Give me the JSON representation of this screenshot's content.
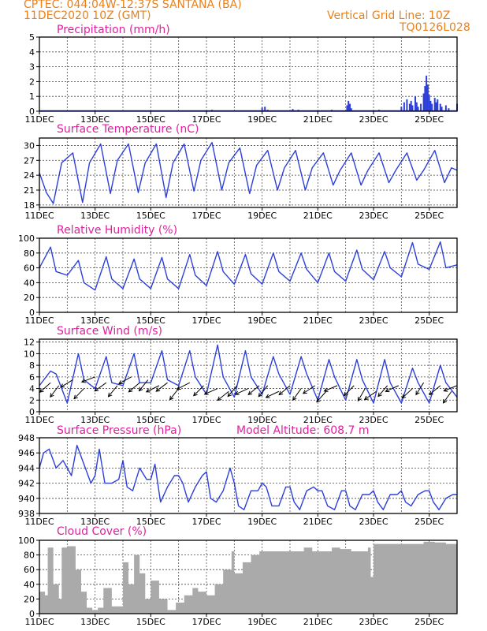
{
  "header": {
    "line1": "CPTEC:   044:04W-12:37S   SANTANA (BA)",
    "line2": "11DEC2020 10Z (GMT)",
    "grid_line": "Vertical Grid Line: 10Z",
    "run_code": "TQ0126L028"
  },
  "colors": {
    "header": "#e8821e",
    "title": "#e0209e",
    "series": "#2d3fdb",
    "cloud": "#aaaaaa"
  },
  "x_axis": {
    "days": [
      "11DEC",
      "13DEC",
      "15DEC",
      "17DEC",
      "19DEC",
      "21DEC",
      "23DEC",
      "25DEC"
    ],
    "start_day": 11,
    "end_day": 26,
    "grid_hour": "10Z"
  },
  "chart_data": [
    {
      "id": "precipitation",
      "type": "bar",
      "title": "Precipitation (mm/h)",
      "ylim": [
        0,
        5
      ],
      "yticks": [
        0,
        1,
        2,
        3,
        4,
        5
      ],
      "grid": true,
      "x_unit": "day of December 2020",
      "bars": [
        [
          17.2,
          0.1
        ],
        [
          19.0,
          0.25
        ],
        [
          19.1,
          0.3
        ],
        [
          19.2,
          0.1
        ],
        [
          20.1,
          0.15
        ],
        [
          20.3,
          0.1
        ],
        [
          21.5,
          0.1
        ],
        [
          22.05,
          0.4
        ],
        [
          22.1,
          0.7
        ],
        [
          22.15,
          0.5
        ],
        [
          22.2,
          0.2
        ],
        [
          23.2,
          0.1
        ],
        [
          24.0,
          0.3
        ],
        [
          24.1,
          0.6
        ],
        [
          24.2,
          0.8
        ],
        [
          24.3,
          0.5
        ],
        [
          24.35,
          0.7
        ],
        [
          24.4,
          0.4
        ],
        [
          24.5,
          1.0
        ],
        [
          24.55,
          0.6
        ],
        [
          24.6,
          0.3
        ],
        [
          24.7,
          0.5
        ],
        [
          24.8,
          1.2
        ],
        [
          24.85,
          1.7
        ],
        [
          24.9,
          2.4
        ],
        [
          24.95,
          1.8
        ],
        [
          25.0,
          1.1
        ],
        [
          25.05,
          0.7
        ],
        [
          25.1,
          0.5
        ],
        [
          25.2,
          0.9
        ],
        [
          25.25,
          0.6
        ],
        [
          25.3,
          0.8
        ],
        [
          25.4,
          0.5
        ],
        [
          25.45,
          0.3
        ],
        [
          25.6,
          0.4
        ],
        [
          25.7,
          0.2
        ],
        [
          26.0,
          0.5
        ]
      ]
    },
    {
      "id": "temperature",
      "type": "line",
      "title": "Surface Temperature (nC)",
      "ylim": [
        17.5,
        31.5
      ],
      "yticks": [
        18,
        21,
        24,
        27,
        30
      ],
      "grid": true,
      "x": [
        11.0,
        11.25,
        11.5,
        11.8,
        12.2,
        12.55,
        12.8,
        13.2,
        13.55,
        13.8,
        14.2,
        14.55,
        14.8,
        15.2,
        15.55,
        15.8,
        16.2,
        16.55,
        16.8,
        17.2,
        17.55,
        17.8,
        18.2,
        18.55,
        18.8,
        19.2,
        19.55,
        19.8,
        20.2,
        20.55,
        20.8,
        21.2,
        21.55,
        21.8,
        22.2,
        22.55,
        22.8,
        23.2,
        23.55,
        23.8,
        24.2,
        24.55,
        24.8,
        25.2,
        25.55,
        25.8,
        26.0
      ],
      "y": [
        24.5,
        20.5,
        18.3,
        26.5,
        28.5,
        18.5,
        26.5,
        30.3,
        20.3,
        27.0,
        30.3,
        20.5,
        26.5,
        30.3,
        19.5,
        26.5,
        30.3,
        20.8,
        27.0,
        30.6,
        21.0,
        26.5,
        29.5,
        20.3,
        26.0,
        29.0,
        21.0,
        25.5,
        29.0,
        21.0,
        25.5,
        28.5,
        22.0,
        25.0,
        28.5,
        22.0,
        25.0,
        28.5,
        22.5,
        25.0,
        28.5,
        23.0,
        25.0,
        29.0,
        22.5,
        25.5,
        25.0
      ]
    },
    {
      "id": "humidity",
      "type": "line",
      "title": "Relative Humidity (%)",
      "ylim": [
        0,
        100
      ],
      "yticks": [
        0,
        20,
        40,
        60,
        80,
        100
      ],
      "grid": true,
      "x": [
        11.0,
        11.4,
        11.6,
        12.0,
        12.4,
        12.6,
        13.0,
        13.4,
        13.6,
        14.0,
        14.4,
        14.6,
        15.0,
        15.4,
        15.6,
        16.0,
        16.4,
        16.6,
        17.0,
        17.4,
        17.6,
        18.0,
        18.4,
        18.6,
        19.0,
        19.4,
        19.6,
        20.0,
        20.4,
        20.6,
        21.0,
        21.4,
        21.6,
        22.0,
        22.4,
        22.6,
        23.0,
        23.4,
        23.6,
        24.0,
        24.4,
        24.6,
        25.0,
        25.4,
        25.6,
        26.0
      ],
      "y": [
        60,
        88,
        55,
        50,
        70,
        40,
        30,
        75,
        45,
        32,
        72,
        45,
        32,
        74,
        45,
        32,
        78,
        50,
        36,
        82,
        55,
        38,
        78,
        52,
        38,
        80,
        55,
        42,
        80,
        58,
        40,
        80,
        55,
        42,
        84,
        58,
        44,
        82,
        60,
        48,
        94,
        65,
        58,
        95,
        60,
        64
      ]
    },
    {
      "id": "wind",
      "type": "line",
      "title": "Surface Wind (m/s)",
      "ylim": [
        0,
        12.5
      ],
      "yticks": [
        0,
        2,
        4,
        6,
        8,
        10,
        12
      ],
      "grid": true,
      "x": [
        11.0,
        11.4,
        11.6,
        12.0,
        12.4,
        12.6,
        13.0,
        13.4,
        13.6,
        14.0,
        14.4,
        14.6,
        15.0,
        15.4,
        15.6,
        16.0,
        16.4,
        16.6,
        17.0,
        17.4,
        17.6,
        18.0,
        18.4,
        18.6,
        19.0,
        19.4,
        19.6,
        20.0,
        20.4,
        20.6,
        21.0,
        21.4,
        21.6,
        22.0,
        22.4,
        22.6,
        23.0,
        23.4,
        23.6,
        24.0,
        24.4,
        24.6,
        25.0,
        25.4,
        25.6,
        26.0
      ],
      "y": [
        4.5,
        7.0,
        6.5,
        1.5,
        10.0,
        5.5,
        4.0,
        9.5,
        5.0,
        4.5,
        10.0,
        5.0,
        5.0,
        10.5,
        5.5,
        4.5,
        10.5,
        6.0,
        3.0,
        11.5,
        6.0,
        2.5,
        10.5,
        6.0,
        3.0,
        9.5,
        6.5,
        3.0,
        9.5,
        6.5,
        2.0,
        9.0,
        6.0,
        2.0,
        9.0,
        5.5,
        1.5,
        9.0,
        5.0,
        1.5,
        7.5,
        5.0,
        1.5,
        8.0,
        5.0,
        2.5
      ],
      "arrows": [
        [
          11.4,
          5
        ],
        [
          11.7,
          4.5
        ],
        [
          12.2,
          5.5
        ],
        [
          12.6,
          4
        ],
        [
          13.0,
          6
        ],
        [
          13.4,
          5
        ],
        [
          13.8,
          4.5
        ],
        [
          14.3,
          6
        ],
        [
          14.6,
          5
        ],
        [
          14.9,
          5.5
        ],
        [
          15.3,
          4.5
        ],
        [
          15.6,
          5
        ],
        [
          16.0,
          4
        ],
        [
          16.4,
          5
        ],
        [
          16.9,
          4.5
        ],
        [
          17.4,
          4
        ],
        [
          17.8,
          3.5
        ],
        [
          18.1,
          4.5
        ],
        [
          18.5,
          4
        ],
        [
          18.9,
          4.5
        ],
        [
          19.2,
          4.5
        ],
        [
          19.6,
          3.5
        ],
        [
          20.0,
          4.5
        ],
        [
          20.4,
          4
        ],
        [
          20.9,
          4.5
        ],
        [
          21.3,
          3.5
        ],
        [
          21.7,
          4.5
        ],
        [
          22.3,
          4.5
        ],
        [
          22.7,
          4
        ],
        [
          23.1,
          3.5
        ],
        [
          23.5,
          4.5
        ],
        [
          23.9,
          4.5
        ],
        [
          24.4,
          4
        ],
        [
          24.8,
          5
        ],
        [
          25.4,
          4.5
        ],
        [
          25.8,
          3.5
        ],
        [
          26.0,
          4.5
        ]
      ]
    },
    {
      "id": "pressure",
      "type": "line",
      "title": "Surface Pressure (hPa)",
      "model_altitude": "Model Altitude: 608.7 m",
      "ylim": [
        938,
        948
      ],
      "yticks": [
        938,
        940,
        942,
        944,
        946,
        948
      ],
      "grid": true,
      "x": [
        11.0,
        11.15,
        11.35,
        11.6,
        11.85,
        12.0,
        12.15,
        12.35,
        12.6,
        12.85,
        13.0,
        13.15,
        13.35,
        13.6,
        13.85,
        14.0,
        14.15,
        14.35,
        14.6,
        14.85,
        15.0,
        15.15,
        15.35,
        15.6,
        15.85,
        16.0,
        16.15,
        16.35,
        16.6,
        16.85,
        17.0,
        17.15,
        17.35,
        17.6,
        17.85,
        18.0,
        18.15,
        18.35,
        18.6,
        18.85,
        19.0,
        19.15,
        19.35,
        19.6,
        19.85,
        20.0,
        20.15,
        20.35,
        20.6,
        20.85,
        21.0,
        21.15,
        21.35,
        21.6,
        21.85,
        22.0,
        22.15,
        22.35,
        22.6,
        22.85,
        23.0,
        23.15,
        23.35,
        23.6,
        23.85,
        24.0,
        24.15,
        24.35,
        24.6,
        24.85,
        25.0,
        25.15,
        25.35,
        25.6,
        25.85,
        26.0
      ],
      "y": [
        944,
        946,
        946.5,
        944,
        945,
        944,
        943,
        947,
        944.5,
        942,
        943,
        946.5,
        942,
        942,
        942.5,
        945,
        941.5,
        941,
        944,
        942.5,
        942.5,
        944.5,
        939.5,
        941.5,
        943,
        943,
        942,
        939.5,
        941.5,
        943,
        943.5,
        940,
        939.5,
        941,
        944,
        942,
        939,
        938.5,
        941,
        941,
        942,
        941.5,
        939,
        939,
        941.5,
        941.5,
        939.5,
        938.5,
        941,
        941.5,
        941,
        941,
        939,
        938.5,
        941,
        941,
        939,
        938.5,
        940.5,
        940.5,
        941,
        939.5,
        938.5,
        940.5,
        940.5,
        941,
        939.5,
        939,
        940.5,
        941,
        941,
        939.5,
        938.5,
        940,
        940.5,
        940.5
      ]
    },
    {
      "id": "cloud",
      "type": "area",
      "title": "Cloud Cover (%)",
      "ylim": [
        0,
        100
      ],
      "yticks": [
        0,
        20,
        40,
        60,
        80,
        100
      ],
      "grid": true,
      "x": [
        11.0,
        11.2,
        11.3,
        11.5,
        11.7,
        11.8,
        12.0,
        12.3,
        12.5,
        12.7,
        12.9,
        13.1,
        13.3,
        13.6,
        14.0,
        14.2,
        14.4,
        14.6,
        14.8,
        15.0,
        15.3,
        15.6,
        15.9,
        16.2,
        16.5,
        16.7,
        17.0,
        17.3,
        17.6,
        17.9,
        18.0,
        18.3,
        18.6,
        18.9,
        19.2,
        19.5,
        19.8,
        20.2,
        20.5,
        20.8,
        21.2,
        21.5,
        21.8,
        22.2,
        22.5,
        22.8,
        22.9,
        23.0,
        23.3,
        23.6,
        24.0,
        24.4,
        24.8,
        25.2,
        25.6,
        26.0
      ],
      "y": [
        30,
        25,
        90,
        40,
        20,
        90,
        92,
        60,
        30,
        8,
        5,
        8,
        35,
        10,
        70,
        40,
        80,
        55,
        20,
        45,
        20,
        5,
        15,
        25,
        35,
        30,
        25,
        40,
        60,
        85,
        55,
        70,
        80,
        85,
        85,
        85,
        85,
        85,
        90,
        85,
        85,
        90,
        88,
        85,
        85,
        90,
        50,
        95,
        95,
        95,
        95,
        95,
        98,
        97,
        95,
        97
      ]
    }
  ]
}
